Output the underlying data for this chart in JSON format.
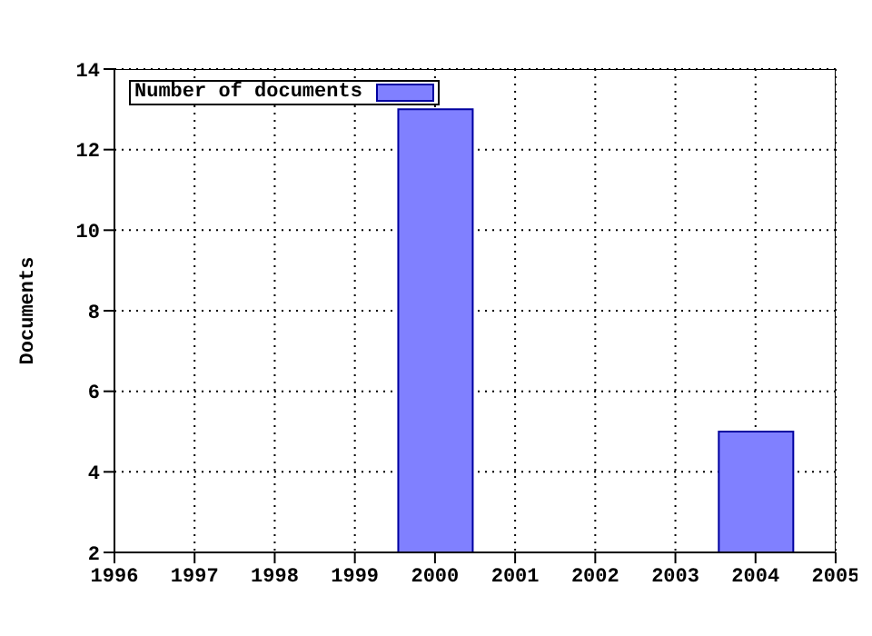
{
  "chart_data": {
    "type": "bar",
    "ylabel": "Documents",
    "x": [
      2000,
      2004
    ],
    "series": [
      {
        "name": "Number of documents",
        "color": "#8080ff",
        "values": [
          13,
          5
        ]
      }
    ],
    "xlim": [
      1996,
      2005
    ],
    "xticks": [
      1996,
      1997,
      1998,
      1999,
      2000,
      2001,
      2002,
      2003,
      2004,
      2005
    ],
    "ylim": [
      2,
      14
    ],
    "yticks": [
      2,
      4,
      6,
      8,
      10,
      12,
      14
    ],
    "grid": true,
    "legend": "top left"
  }
}
